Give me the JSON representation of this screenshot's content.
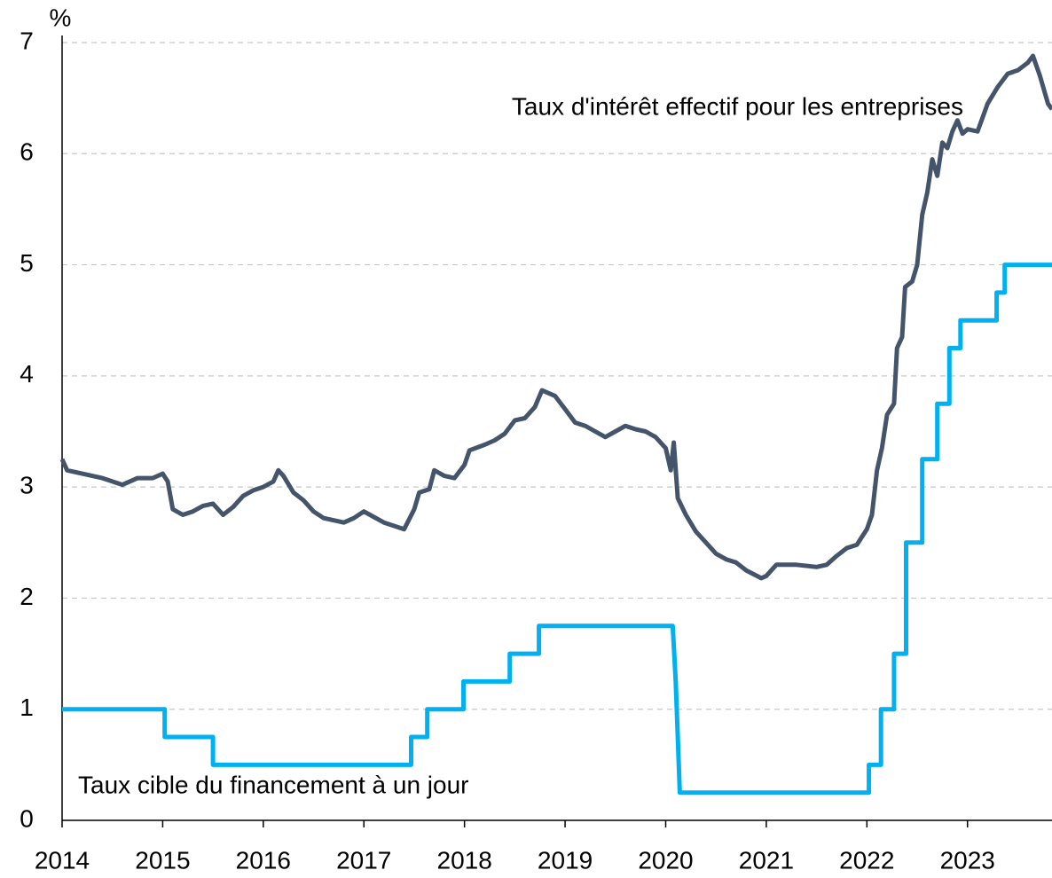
{
  "chart_data": {
    "type": "line",
    "y_unit_label": "%",
    "xlim": [
      2014,
      2023.84
    ],
    "xticks": [
      2014,
      2015,
      2016,
      2017,
      2018,
      2019,
      2020,
      2021,
      2022,
      2023
    ],
    "ylim": [
      0,
      7
    ],
    "yticks": [
      0,
      1,
      2,
      3,
      4,
      5,
      6,
      7
    ],
    "grid": true,
    "series": [
      {
        "name": "Taux d'intérêt effectif pour les entreprises",
        "color": "#44546a",
        "x": [
          2014.0,
          2014.05,
          2014.2,
          2014.4,
          2014.6,
          2014.75,
          2014.9,
          2015.0,
          2015.05,
          2015.1,
          2015.2,
          2015.3,
          2015.4,
          2015.5,
          2015.6,
          2015.7,
          2015.8,
          2015.9,
          2016.0,
          2016.1,
          2016.15,
          2016.2,
          2016.3,
          2016.4,
          2016.5,
          2016.6,
          2016.8,
          2016.9,
          2017.0,
          2017.1,
          2017.2,
          2017.3,
          2017.4,
          2017.5,
          2017.55,
          2017.65,
          2017.7,
          2017.8,
          2017.9,
          2018.0,
          2018.05,
          2018.2,
          2018.3,
          2018.4,
          2018.5,
          2018.6,
          2018.7,
          2018.77,
          2018.9,
          2019.0,
          2019.1,
          2019.2,
          2019.3,
          2019.4,
          2019.5,
          2019.6,
          2019.7,
          2019.8,
          2019.9,
          2020.0,
          2020.05,
          2020.08,
          2020.12,
          2020.2,
          2020.3,
          2020.4,
          2020.5,
          2020.6,
          2020.7,
          2020.8,
          2020.95,
          2021.0,
          2021.1,
          2021.3,
          2021.5,
          2021.6,
          2021.7,
          2021.8,
          2021.9,
          2021.95,
          2022.0,
          2022.05,
          2022.1,
          2022.15,
          2022.2,
          2022.27,
          2022.3,
          2022.35,
          2022.38,
          2022.45,
          2022.5,
          2022.55,
          2022.6,
          2022.65,
          2022.7,
          2022.75,
          2022.8,
          2022.85,
          2022.9,
          2022.95,
          2023.0,
          2023.1,
          2023.2,
          2023.3,
          2023.4,
          2023.5,
          2023.6,
          2023.65,
          2023.72,
          2023.8,
          2023.84
        ],
        "values": [
          3.25,
          3.15,
          3.12,
          3.08,
          3.02,
          3.08,
          3.08,
          3.12,
          3.05,
          2.8,
          2.75,
          2.78,
          2.83,
          2.85,
          2.75,
          2.82,
          2.92,
          2.97,
          3.0,
          3.05,
          3.15,
          3.1,
          2.95,
          2.88,
          2.78,
          2.72,
          2.68,
          2.72,
          2.78,
          2.73,
          2.68,
          2.65,
          2.62,
          2.8,
          2.95,
          2.98,
          3.15,
          3.1,
          3.08,
          3.2,
          3.33,
          3.38,
          3.42,
          3.48,
          3.6,
          3.62,
          3.72,
          3.87,
          3.82,
          3.7,
          3.58,
          3.55,
          3.5,
          3.45,
          3.5,
          3.55,
          3.52,
          3.5,
          3.45,
          3.35,
          3.15,
          3.4,
          2.9,
          2.75,
          2.6,
          2.5,
          2.4,
          2.35,
          2.32,
          2.25,
          2.18,
          2.2,
          2.3,
          2.3,
          2.28,
          2.3,
          2.38,
          2.45,
          2.48,
          2.55,
          2.62,
          2.75,
          3.15,
          3.35,
          3.65,
          3.75,
          4.25,
          4.35,
          4.8,
          4.85,
          5.0,
          5.45,
          5.65,
          5.95,
          5.8,
          6.1,
          6.05,
          6.2,
          6.3,
          6.18,
          6.22,
          6.2,
          6.45,
          6.6,
          6.72,
          6.75,
          6.82,
          6.88,
          6.7,
          6.45,
          6.4
        ]
      },
      {
        "name": "Taux cible du financement à un jour",
        "color": "#00b0f0",
        "x": [
          2014.0,
          2015.02,
          2015.02,
          2015.5,
          2015.5,
          2017.47,
          2017.47,
          2017.63,
          2017.63,
          2017.99,
          2017.99,
          2018.45,
          2018.45,
          2018.74,
          2018.74,
          2020.07,
          2020.1,
          2020.14,
          2022.02,
          2022.02,
          2022.14,
          2022.14,
          2022.27,
          2022.27,
          2022.39,
          2022.39,
          2022.55,
          2022.55,
          2022.7,
          2022.7,
          2022.82,
          2022.82,
          2022.93,
          2022.93,
          2023.29,
          2023.29,
          2023.37,
          2023.37,
          2023.84
        ],
        "values": [
          1.0,
          1.0,
          0.75,
          0.75,
          0.5,
          0.5,
          0.75,
          0.75,
          1.0,
          1.0,
          1.25,
          1.25,
          1.5,
          1.5,
          1.75,
          1.75,
          1.25,
          0.25,
          0.25,
          0.5,
          0.5,
          1.0,
          1.0,
          1.5,
          1.5,
          2.5,
          2.5,
          3.25,
          3.25,
          3.75,
          3.75,
          4.25,
          4.25,
          4.5,
          4.5,
          4.75,
          4.75,
          5.0,
          5.0
        ]
      }
    ]
  }
}
